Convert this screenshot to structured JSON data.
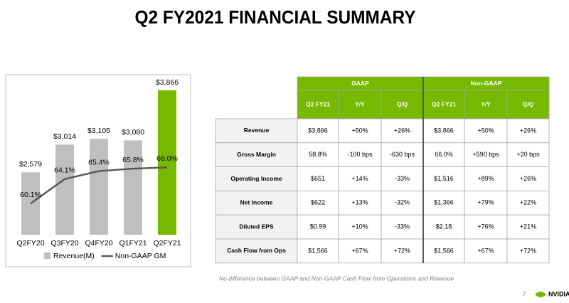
{
  "title": "Q2 FY2021 FINANCIAL SUMMARY",
  "chart_data": {
    "type": "bar-line",
    "categories": [
      "Q2FY20",
      "Q3FY20",
      "Q4FY20",
      "Q1FY21",
      "Q2FY21"
    ],
    "series": [
      {
        "name": "Revenue(M)",
        "type": "bar",
        "color": "#bfbfbf",
        "colors": [
          "#bfbfbf",
          "#bfbfbf",
          "#bfbfbf",
          "#bfbfbf",
          "#76b900"
        ],
        "values": [
          2579,
          3014,
          3105,
          3080,
          3866
        ],
        "value_labels": [
          "$2,579",
          "$3,014",
          "$3,105",
          "$3,080",
          "$3,866"
        ]
      },
      {
        "name": "Non-GAAP GM",
        "type": "line",
        "axis": "y2",
        "color": "#595959",
        "values": [
          60.1,
          64.1,
          65.4,
          65.8,
          66.0
        ],
        "value_labels": [
          "60.1%",
          "64.1%",
          "65.4%",
          "65.8%",
          "66.0%"
        ]
      }
    ],
    "ylim": [
      1600,
      4000
    ],
    "y2lim": [
      55,
      80
    ],
    "legend": "bottom"
  },
  "table": {
    "groups": [
      "GAAP",
      "Non-GAAP"
    ],
    "columns": [
      "Q2 FY21",
      "Y/Y",
      "Q/Q",
      "Q2 FY21",
      "Y/Y",
      "Q/Q"
    ],
    "rows": [
      [
        "Revenue",
        "$3,866",
        "+50%",
        "+26%",
        "$3,866",
        "+50%",
        "+26%"
      ],
      [
        "Gross Margin",
        "58.8%",
        "-100 bps",
        "-630 bps",
        "66.0%",
        "+590 bps",
        "+20 bps"
      ],
      [
        "Operating Income",
        "$651",
        "+14%",
        "-33%",
        "$1,516",
        "+89%",
        "+26%"
      ],
      [
        "Net Income",
        "$622",
        "+13%",
        "-32%",
        "$1,366",
        "+79%",
        "+22%"
      ],
      [
        "Diluted EPS",
        "$0.99",
        "+10%",
        "-33%",
        "$2.18",
        "+76%",
        "+21%"
      ],
      [
        "Cash Flow from Ops",
        "$1,566",
        "+67%",
        "+72%",
        "$1,566",
        "+67%",
        "+72%"
      ]
    ]
  },
  "footnote": "No difference between GAAP and Non-GAAP Cash Flow from Operations and Revenue",
  "page_number": "7",
  "logo": "NVIDIA"
}
